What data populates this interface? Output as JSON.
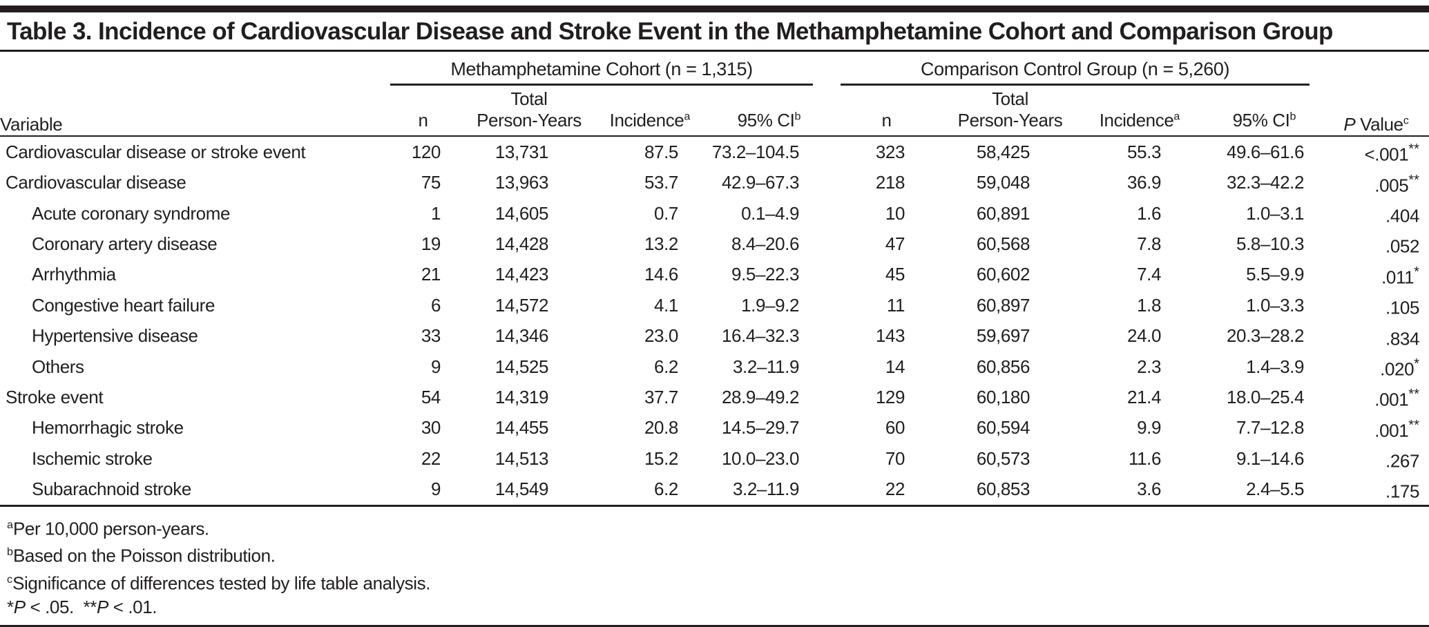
{
  "title": "Table 3. Incidence of Cardiovascular Disease and Stroke Event in the Methamphetamine Cohort and Comparison Group",
  "table": {
    "groups": [
      {
        "label": "Methamphetamine Cohort (n = 1,315)"
      },
      {
        "label": "Comparison Control Group (n = 5,260)"
      }
    ],
    "columns": {
      "variable": "Variable",
      "n": "n",
      "total": "Total",
      "person_years": "Person-Years",
      "incidence": "Incidence",
      "incidence_sup": "a",
      "ci": "95% CI",
      "ci_sup": "b",
      "p_italic": "P",
      "p_rest": " Value",
      "p_sup": "c"
    },
    "rows": [
      {
        "label": "Cardiovascular disease or stroke event",
        "indent": false,
        "m_n": "120",
        "m_py": "13,731",
        "m_inc": "87.5",
        "m_ci": "73.2–104.5",
        "c_n": "323",
        "c_py": "58,425",
        "c_inc": "55.3",
        "c_ci": "49.6–61.6",
        "p": "<.001",
        "stars": "**"
      },
      {
        "label": "Cardiovascular disease",
        "indent": false,
        "m_n": "75",
        "m_py": "13,963",
        "m_inc": "53.7",
        "m_ci": "42.9–67.3",
        "c_n": "218",
        "c_py": "59,048",
        "c_inc": "36.9",
        "c_ci": "32.3–42.2",
        "p": ".005",
        "stars": "**"
      },
      {
        "label": "Acute coronary syndrome",
        "indent": true,
        "m_n": "1",
        "m_py": "14,605",
        "m_inc": "0.7",
        "m_ci": "0.1–4.9",
        "c_n": "10",
        "c_py": "60,891",
        "c_inc": "1.6",
        "c_ci": "1.0–3.1",
        "p": ".404",
        "stars": ""
      },
      {
        "label": "Coronary artery disease",
        "indent": true,
        "m_n": "19",
        "m_py": "14,428",
        "m_inc": "13.2",
        "m_ci": "8.4–20.6",
        "c_n": "47",
        "c_py": "60,568",
        "c_inc": "7.8",
        "c_ci": "5.8–10.3",
        "p": ".052",
        "stars": ""
      },
      {
        "label": "Arrhythmia",
        "indent": true,
        "m_n": "21",
        "m_py": "14,423",
        "m_inc": "14.6",
        "m_ci": "9.5–22.3",
        "c_n": "45",
        "c_py": "60,602",
        "c_inc": "7.4",
        "c_ci": "5.5–9.9",
        "p": ".011",
        "stars": "*"
      },
      {
        "label": "Congestive heart failure",
        "indent": true,
        "m_n": "6",
        "m_py": "14,572",
        "m_inc": "4.1",
        "m_ci": "1.9–9.2",
        "c_n": "11",
        "c_py": "60,897",
        "c_inc": "1.8",
        "c_ci": "1.0–3.3",
        "p": ".105",
        "stars": ""
      },
      {
        "label": "Hypertensive disease",
        "indent": true,
        "m_n": "33",
        "m_py": "14,346",
        "m_inc": "23.0",
        "m_ci": "16.4–32.3",
        "c_n": "143",
        "c_py": "59,697",
        "c_inc": "24.0",
        "c_ci": "20.3–28.2",
        "p": ".834",
        "stars": ""
      },
      {
        "label": "Others",
        "indent": true,
        "m_n": "9",
        "m_py": "14,525",
        "m_inc": "6.2",
        "m_ci": "3.2–11.9",
        "c_n": "14",
        "c_py": "60,856",
        "c_inc": "2.3",
        "c_ci": "1.4–3.9",
        "p": ".020",
        "stars": "*"
      },
      {
        "label": "Stroke event",
        "indent": false,
        "m_n": "54",
        "m_py": "14,319",
        "m_inc": "37.7",
        "m_ci": "28.9–49.2",
        "c_n": "129",
        "c_py": "60,180",
        "c_inc": "21.4",
        "c_ci": "18.0–25.4",
        "p": ".001",
        "stars": "**"
      },
      {
        "label": "Hemorrhagic stroke",
        "indent": true,
        "m_n": "30",
        "m_py": "14,455",
        "m_inc": "20.8",
        "m_ci": "14.5–29.7",
        "c_n": "60",
        "c_py": "60,594",
        "c_inc": "9.9",
        "c_ci": "7.7–12.8",
        "p": ".001",
        "stars": "**"
      },
      {
        "label": "Ischemic stroke",
        "indent": true,
        "m_n": "22",
        "m_py": "14,513",
        "m_inc": "15.2",
        "m_ci": "10.0–23.0",
        "c_n": "70",
        "c_py": "60,573",
        "c_inc": "11.6",
        "c_ci": "9.1–14.6",
        "p": ".267",
        "stars": ""
      },
      {
        "label": "Subarachnoid stroke",
        "indent": true,
        "m_n": "9",
        "m_py": "14,549",
        "m_inc": "6.2",
        "m_ci": "3.2–11.9",
        "c_n": "22",
        "c_py": "60,853",
        "c_inc": "3.6",
        "c_ci": "2.4–5.5",
        "p": ".175",
        "stars": ""
      }
    ]
  },
  "footnotes": {
    "a": {
      "sup": "a",
      "text": "Per 10,000 person-years."
    },
    "b": {
      "sup": "b",
      "text": "Based on the Poisson distribution."
    },
    "c": {
      "sup": "c",
      "text": "Significance of differences tested by life table analysis."
    },
    "sig_segments": [
      {
        "t": "*"
      },
      {
        "t": "P",
        "i": true
      },
      {
        "t": " < .05.  **"
      },
      {
        "t": "P",
        "i": true
      },
      {
        "t": " < .01."
      }
    ]
  }
}
